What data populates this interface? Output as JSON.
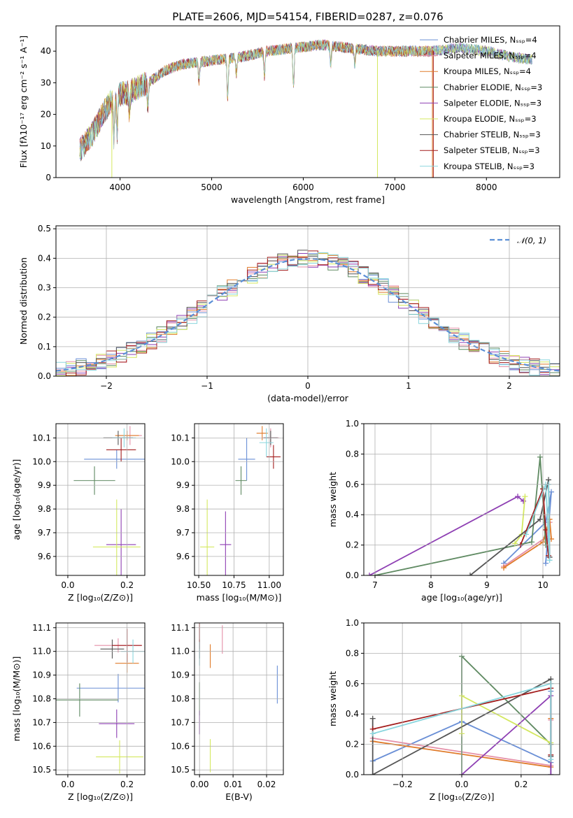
{
  "chart_data": [
    {
      "id": "spectrum",
      "type": "line",
      "title": "PLATE=2606, MJD=54154, FIBERID=0287, z=0.076",
      "xlabel": "wavelength [Angstrom, rest frame]",
      "ylabel": "Flux [fλ10⁻¹⁷ erg cm⁻² s⁻¹ A⁻¹]",
      "xlim": [
        3300,
        8800
      ],
      "ylim": [
        0,
        48
      ],
      "xticks": [
        4000,
        5000,
        6000,
        7000,
        8000
      ],
      "yticks": [
        0,
        10,
        20,
        30,
        40
      ],
      "legend_position": "upper-right",
      "series": [
        {
          "name": "Chabrier MILES, Nₛₛₚ=4",
          "color": "#6a8fd6"
        },
        {
          "name": "Salpeter MILES, Nₛₛₚ=4",
          "color": "#e58fa8"
        },
        {
          "name": "Kroupa MILES, Nₛₛₚ=4",
          "color": "#e07b2a"
        },
        {
          "name": "Chabrier ELODIE, Nₛₛₚ=3",
          "color": "#5f8a62"
        },
        {
          "name": "Salpeter ELODIE, Nₛₛₚ=3",
          "color": "#8e3fb3"
        },
        {
          "name": "Kroupa ELODIE, Nₛₛₚ=3",
          "color": "#d4e860"
        },
        {
          "name": "Chabrier STELIB, Nₛₛₚ=3",
          "color": "#555555"
        },
        {
          "name": "Salpeter STELIB, Nₛₛₚ=3",
          "color": "#a31c1c"
        },
        {
          "name": "Kroupa STELIB, Nₛₛₚ=3",
          "color": "#8ad6de"
        }
      ],
      "continuum": {
        "x": [
          3550,
          3700,
          3850,
          3950,
          4100,
          4300,
          4500,
          4700,
          5000,
          5300,
          5600,
          5900,
          6200,
          6500,
          6800,
          7100,
          7400,
          7700,
          8000,
          8300,
          8600
        ],
        "y": [
          8,
          14,
          22,
          26,
          27,
          30,
          34,
          36,
          37,
          38,
          40,
          41,
          42,
          41,
          40,
          40,
          40,
          41,
          40,
          38,
          37
        ]
      },
      "features": [
        {
          "x": 3934,
          "depth": 14
        },
        {
          "x": 3969,
          "depth": 12
        },
        {
          "x": 4102,
          "depth": 6
        },
        {
          "x": 4304,
          "depth": 8
        },
        {
          "x": 4861,
          "depth": 6
        },
        {
          "x": 5175,
          "depth": 12
        },
        {
          "x": 5270,
          "depth": 5
        },
        {
          "x": 5577,
          "depth": 8
        },
        {
          "x": 5893,
          "depth": 13
        },
        {
          "x": 6300,
          "depth": 6
        },
        {
          "x": 6563,
          "depth": 5
        }
      ],
      "spikes": [
        {
          "x": 3910,
          "series": 5
        },
        {
          "x": 6810,
          "series": 5
        },
        {
          "x": 7410,
          "series": 2
        },
        {
          "x": 7420,
          "series": 7
        }
      ]
    },
    {
      "id": "residuals",
      "type": "histogram",
      "xlabel": "(data-model)/error",
      "ylabel": "Normed distribution",
      "xlim": [
        -2.5,
        2.5
      ],
      "ylim": [
        0,
        0.51
      ],
      "xticks": [
        -2,
        -1,
        0,
        1,
        2
      ],
      "yticks": [
        0.0,
        0.1,
        0.2,
        0.3,
        0.4,
        0.5
      ],
      "bin_width": 0.1,
      "reference_curve": {
        "name": "𝒩(0, 1)",
        "color": "#5b8fd6",
        "style": "dashed"
      },
      "legend_position": "upper-right"
    },
    {
      "id": "age-vs-Z",
      "type": "errorbar",
      "xlabel": "Z [log₁₀(Z/Z⊙)]",
      "ylabel": "age  [log₁₀(age/yr)]",
      "xlim": [
        -0.04,
        0.26
      ],
      "ylim": [
        9.52,
        10.16
      ],
      "xticks": [
        0.0,
        0.2
      ],
      "yticks": [
        9.6,
        9.7,
        9.8,
        9.9,
        10.0,
        10.1
      ],
      "points": [
        {
          "x": 0.165,
          "xerr": 0.11,
          "y": 10.01,
          "yerr": 0.04,
          "series": 0
        },
        {
          "x": 0.21,
          "xerr": 0.04,
          "y": 10.11,
          "yerr": 0.04,
          "series": 1
        },
        {
          "x": 0.2,
          "xerr": 0.04,
          "y": 10.11,
          "yerr": 0.02,
          "series": 2
        },
        {
          "x": 0.09,
          "xerr": 0.07,
          "y": 9.92,
          "yerr": 0.06,
          "series": 3
        },
        {
          "x": 0.18,
          "xerr": 0.05,
          "y": 9.65,
          "yerr": 0.15,
          "series": 4
        },
        {
          "x": 0.165,
          "xerr": 0.08,
          "y": 9.64,
          "yerr": 0.2,
          "series": 5
        },
        {
          "x": 0.17,
          "xerr": 0.05,
          "y": 10.1,
          "yerr": 0.03,
          "series": 6
        },
        {
          "x": 0.18,
          "xerr": 0.05,
          "y": 10.05,
          "yerr": 0.05,
          "series": 7
        },
        {
          "x": 0.19,
          "xerr": 0.04,
          "y": 10.1,
          "yerr": 0.04,
          "series": 8
        }
      ]
    },
    {
      "id": "age-vs-mass",
      "type": "errorbar",
      "xlabel": "mass [log₁₀(M/M⊙)]",
      "ylabel": "",
      "xlim": [
        10.47,
        11.1
      ],
      "ylim": [
        9.52,
        10.16
      ],
      "xticks": [
        10.5,
        10.75,
        11.0
      ],
      "yticks": [
        9.6,
        9.7,
        9.8,
        9.9,
        10.0,
        10.1
      ],
      "points": [
        {
          "x": 10.84,
          "xerr": 0.06,
          "y": 10.01,
          "yerr": 0.09,
          "series": 0
        },
        {
          "x": 11.01,
          "xerr": 0.06,
          "y": 10.1,
          "yerr": 0.04,
          "series": 1
        },
        {
          "x": 10.95,
          "xerr": 0.04,
          "y": 10.12,
          "yerr": 0.03,
          "series": 2
        },
        {
          "x": 10.8,
          "xerr": 0.04,
          "y": 9.92,
          "yerr": 0.06,
          "series": 3
        },
        {
          "x": 10.69,
          "xerr": 0.04,
          "y": 9.65,
          "yerr": 0.14,
          "series": 4
        },
        {
          "x": 10.56,
          "xerr": 0.05,
          "y": 9.64,
          "yerr": 0.2,
          "series": 5
        },
        {
          "x": 11.01,
          "xerr": 0.05,
          "y": 10.1,
          "yerr": 0.03,
          "series": 6
        },
        {
          "x": 11.03,
          "xerr": 0.05,
          "y": 10.02,
          "yerr": 0.05,
          "series": 7
        },
        {
          "x": 10.98,
          "xerr": 0.05,
          "y": 10.08,
          "yerr": 0.06,
          "series": 8
        }
      ]
    },
    {
      "id": "weight-vs-age",
      "type": "line",
      "xlabel": "age  [log₁₀(age/yr)]",
      "ylabel": "mass weight",
      "xlim": [
        6.8,
        10.3
      ],
      "ylim": [
        0,
        1
      ],
      "xticks": [
        7,
        8,
        9,
        10
      ],
      "yticks": [
        0.0,
        0.2,
        0.4,
        0.6,
        0.8,
        1.0
      ],
      "series": [
        {
          "series": 0,
          "x": [
            9.3,
            10.05,
            10.15,
            10.05
          ],
          "y": [
            0.08,
            0.35,
            0.55,
            0.08
          ]
        },
        {
          "series": 1,
          "x": [
            9.3,
            10.05,
            10.12
          ],
          "y": [
            0.06,
            0.25,
            0.35
          ]
        },
        {
          "series": 2,
          "x": [
            9.3,
            10.0,
            10.12,
            10.15
          ],
          "y": [
            0.05,
            0.22,
            0.37,
            0.24
          ]
        },
        {
          "series": 3,
          "x": [
            7.0,
            9.8,
            9.95,
            10.05
          ],
          "y": [
            0.0,
            0.22,
            0.78,
            0.2
          ]
        },
        {
          "series": 4,
          "x": [
            6.9,
            9.55,
            9.65
          ],
          "y": [
            0.0,
            0.52,
            0.49
          ]
        },
        {
          "series": 5,
          "x": [
            9.5,
            9.62,
            9.68
          ],
          "y": [
            0.21,
            0.27,
            0.52
          ]
        },
        {
          "series": 6,
          "x": [
            8.7,
            9.95,
            10.1,
            10.12
          ],
          "y": [
            0.0,
            0.37,
            0.63,
            0.12
          ]
        },
        {
          "series": 7,
          "x": [
            9.6,
            10.0,
            10.05,
            10.1
          ],
          "y": [
            0.2,
            0.57,
            0.3,
            0.13
          ]
        },
        {
          "series": 8,
          "x": [
            9.7,
            10.05,
            10.12,
            10.1
          ],
          "y": [
            0.27,
            0.6,
            0.1,
            0.6
          ]
        }
      ]
    },
    {
      "id": "mass-vs-Z",
      "type": "errorbar",
      "xlabel": "Z [log₁₀(Z/Z⊙)]",
      "ylabel": "mass [log₁₀(M/M⊙)]",
      "xlim": [
        -0.04,
        0.26
      ],
      "ylim": [
        10.48,
        11.12
      ],
      "xticks": [
        0.0,
        0.2
      ],
      "yticks": [
        10.5,
        10.6,
        10.7,
        10.8,
        10.9,
        11.0,
        11.1
      ],
      "points": [
        {
          "x": 0.17,
          "xerr": 0.14,
          "y": 10.845,
          "yerr": 0.06,
          "series": 0
        },
        {
          "x": 0.17,
          "xerr": 0.08,
          "y": 11.025,
          "yerr": 0.03,
          "series": 1
        },
        {
          "x": 0.2,
          "xerr": 0.04,
          "y": 10.95,
          "yerr": 0.04,
          "series": 2
        },
        {
          "x": 0.04,
          "xerr": 0.13,
          "y": 10.795,
          "yerr": 0.07,
          "series": 3
        },
        {
          "x": 0.165,
          "xerr": 0.06,
          "y": 10.695,
          "yerr": 0.06,
          "series": 4
        },
        {
          "x": 0.175,
          "xerr": 0.08,
          "y": 10.555,
          "yerr": 0.07,
          "series": 5
        },
        {
          "x": 0.15,
          "xerr": 0.04,
          "y": 11.01,
          "yerr": 0.04,
          "series": 6
        },
        {
          "x": 0.2,
          "xerr": 0.05,
          "y": 11.025,
          "yerr": 0.07,
          "series": 7
        },
        {
          "x": 0.22,
          "xerr": 0.04,
          "y": 11.0,
          "yerr": 0.05,
          "series": 8
        }
      ]
    },
    {
      "id": "mass-vs-ebv",
      "type": "errorbar",
      "xlabel": "E(B-V)",
      "ylabel": "",
      "xlim": [
        -0.0015,
        0.025
      ],
      "ylim": [
        10.48,
        11.12
      ],
      "xticks": [
        0.0,
        0.01,
        0.02
      ],
      "yticks": [
        10.5,
        10.6,
        10.7,
        10.8,
        10.9,
        11.0,
        11.1
      ],
      "points": [
        {
          "x": 0.0232,
          "y": 10.86,
          "yerr": 0.08,
          "series": 0
        },
        {
          "x": 0.0068,
          "y": 11.05,
          "yerr": 0.06,
          "series": 1
        },
        {
          "x": 0.0032,
          "y": 10.98,
          "yerr": 0.05,
          "series": 2
        },
        {
          "x": 0.0,
          "y": 10.8,
          "yerr": 0.07,
          "series": 3
        },
        {
          "x": 0.0,
          "y": 10.7,
          "yerr": 0.05,
          "series": 4
        },
        {
          "x": 0.0032,
          "y": 10.56,
          "yerr": 0.07,
          "series": 5
        },
        {
          "x": 0.0,
          "y": 11.01,
          "yerr": 0.04,
          "series": 6
        },
        {
          "x": 0.0,
          "y": 11.07,
          "yerr": 0.06,
          "series": 7
        },
        {
          "x": 0.0,
          "y": 10.99,
          "yerr": 0.05,
          "series": 8
        }
      ]
    },
    {
      "id": "weight-vs-Z",
      "type": "line",
      "xlabel": "Z [log₁₀(Z/Z⊙)]",
      "ylabel": "mass weight",
      "xlim": [
        -0.33,
        0.33
      ],
      "ylim": [
        0,
        1
      ],
      "xticks": [
        -0.2,
        0.0,
        0.2
      ],
      "yticks": [
        0.0,
        0.2,
        0.4,
        0.6,
        0.8,
        1.0
      ],
      "series": [
        {
          "series": 0,
          "x": [
            -0.3,
            0.0,
            0.3,
            0.3
          ],
          "y": [
            0.09,
            0.35,
            0.08,
            0.55
          ]
        },
        {
          "series": 1,
          "x": [
            -0.3,
            0.3,
            0.3
          ],
          "y": [
            0.24,
            0.06,
            0.36
          ]
        },
        {
          "series": 2,
          "x": [
            -0.3,
            0.3,
            0.3
          ],
          "y": [
            0.22,
            0.05,
            0.37
          ]
        },
        {
          "series": 3,
          "x": [
            0.0,
            0.0,
            0.3,
            0.3
          ],
          "y": [
            0.0,
            0.78,
            0.2,
            0.0
          ]
        },
        {
          "series": 4,
          "x": [
            0.0,
            0.3,
            0.3
          ],
          "y": [
            0.0,
            0.52,
            0.0
          ]
        },
        {
          "series": 5,
          "x": [
            0.0,
            0.0,
            0.3
          ],
          "y": [
            0.27,
            0.52,
            0.21
          ]
        },
        {
          "series": 6,
          "x": [
            -0.3,
            -0.3,
            0.3,
            0.3
          ],
          "y": [
            0.37,
            0.0,
            0.63,
            0.12
          ]
        },
        {
          "series": 7,
          "x": [
            -0.3,
            0.3,
            0.3
          ],
          "y": [
            0.3,
            0.57,
            0.13
          ]
        },
        {
          "series": 8,
          "x": [
            -0.3,
            0.3,
            0.3
          ],
          "y": [
            0.27,
            0.6,
            0.1
          ]
        }
      ]
    }
  ]
}
